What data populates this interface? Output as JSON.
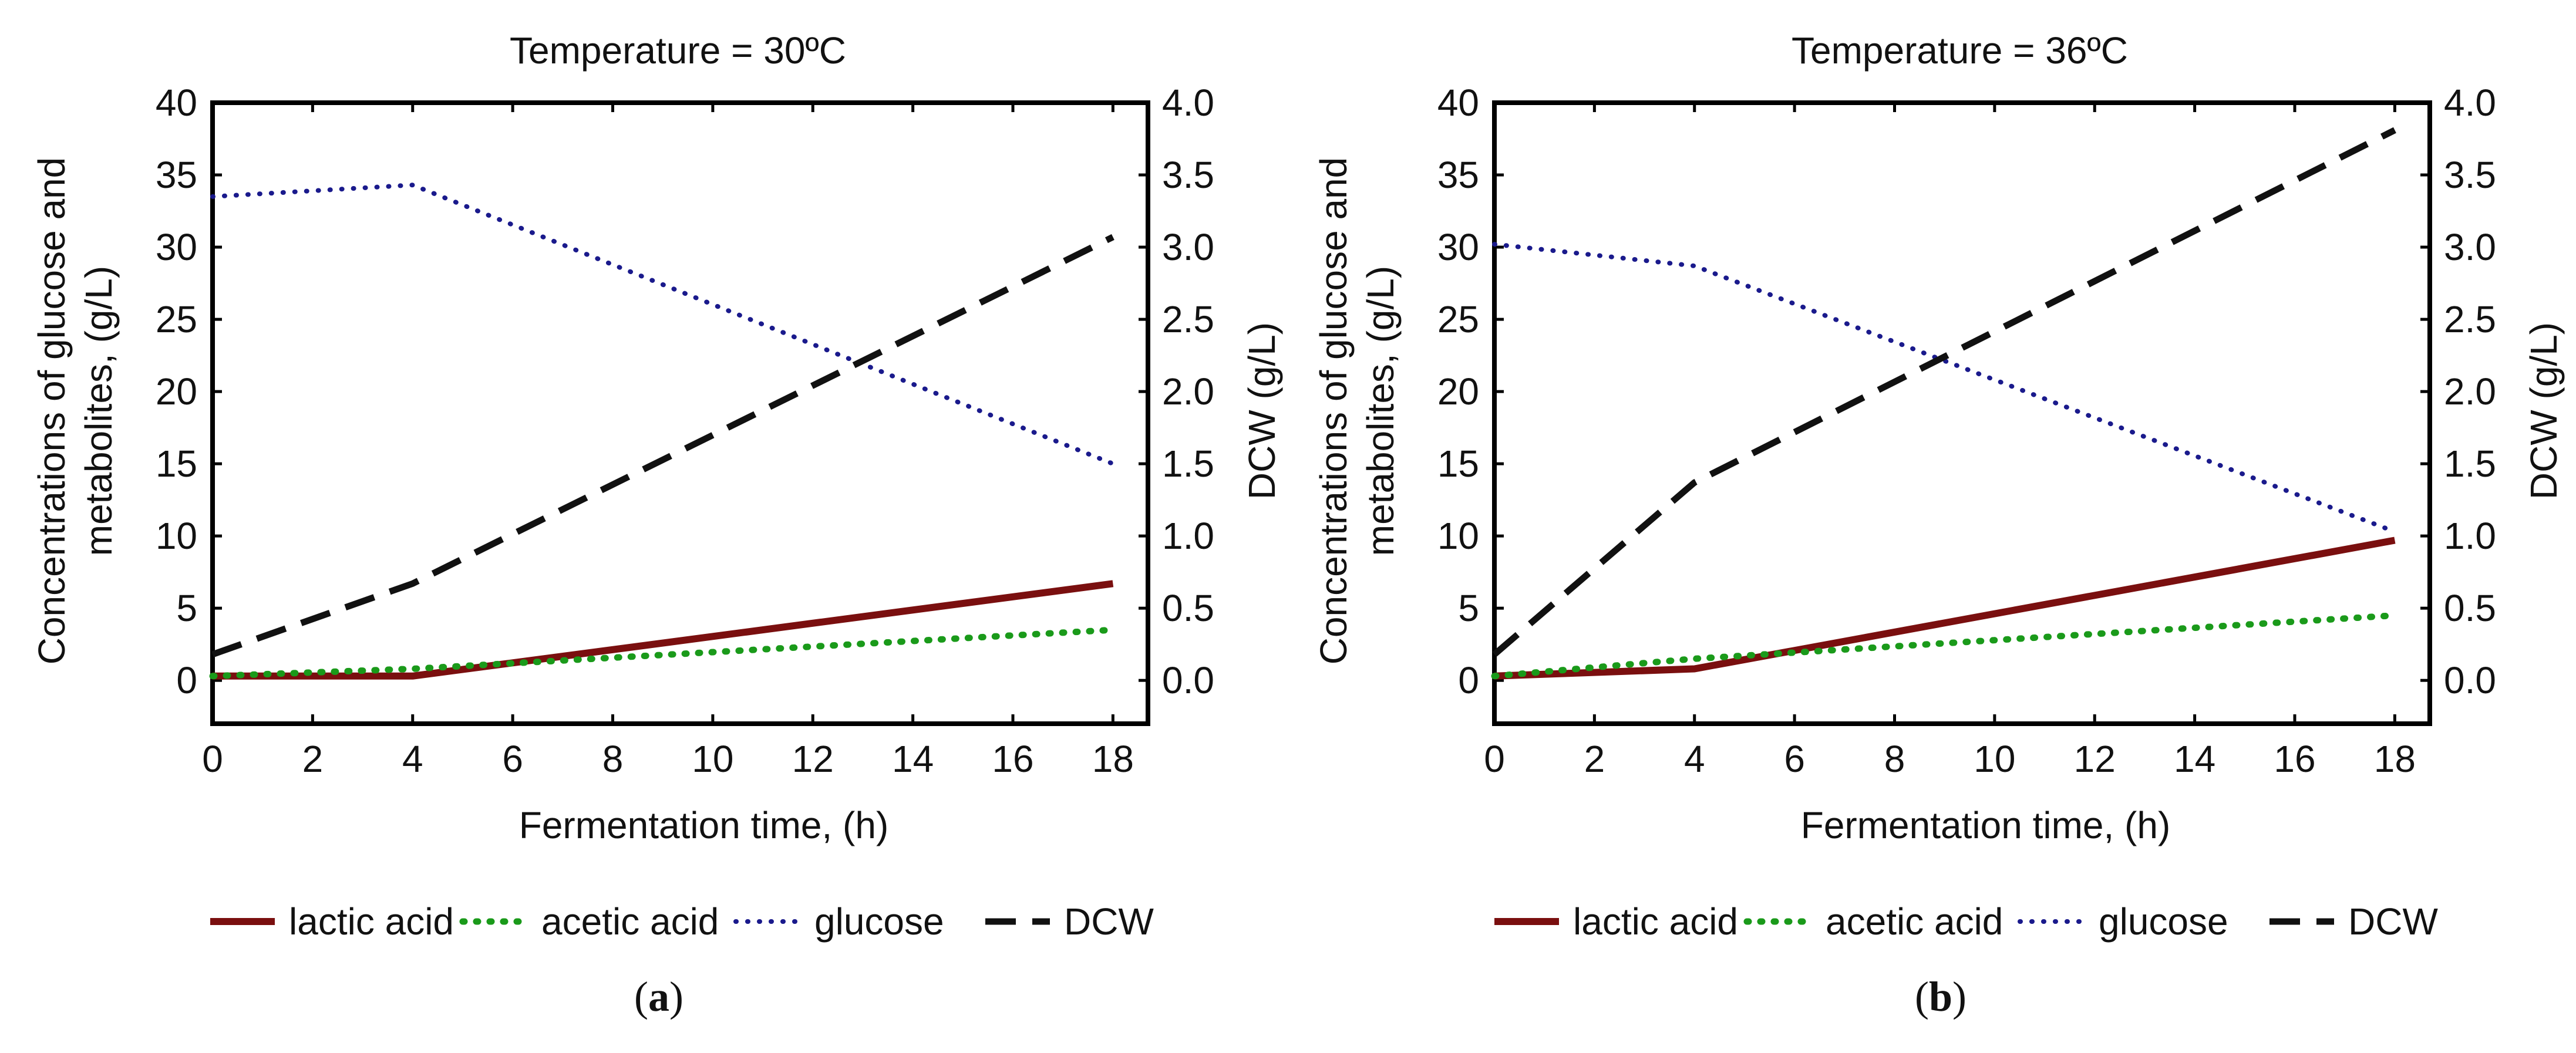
{
  "colors": {
    "lactic_acid": "#7a0f0f",
    "acetic_acid": "#1a9a1a",
    "glucose": "#1a1a8c",
    "dcw": "#111111",
    "axis": "#000000",
    "background": "#ffffff"
  },
  "chart_data": [
    {
      "type": "line",
      "panel_label": "a",
      "title": "Temperature = 30ºC",
      "xlabel": "Fermentation time, (h)",
      "ylabel_left_line1": "Concentrations of glucose and",
      "ylabel_left_line2": "metabolites, (g/L)",
      "ylabel_right": "DCW (g/L)",
      "xlim": [
        0,
        18.7
      ],
      "ylim_left": [
        -3,
        40
      ],
      "ylim_right": [
        -0.3,
        4.0
      ],
      "x_ticks": [
        "0",
        "2",
        "4",
        "6",
        "8",
        "10",
        "12",
        "14",
        "16",
        "18"
      ],
      "y_ticks_left": [
        "0",
        "5",
        "10",
        "15",
        "20",
        "25",
        "30",
        "35",
        "40"
      ],
      "y_ticks_right": [
        "0.0",
        "0.5",
        "1.0",
        "1.5",
        "2.0",
        "2.5",
        "3.0",
        "3.5",
        "4.0"
      ],
      "grid": false,
      "legend_position": "bottom",
      "series": [
        {
          "name": "lactic acid",
          "axis": "left",
          "style": "solid",
          "x": [
            0,
            4,
            18
          ],
          "y": [
            0.3,
            0.3,
            6.7
          ]
        },
        {
          "name": "acetic acid",
          "axis": "left",
          "style": "dotted",
          "x": [
            0,
            4,
            18
          ],
          "y": [
            0.3,
            0.8,
            3.5
          ]
        },
        {
          "name": "glucose",
          "axis": "left",
          "style": "fine-dotted",
          "x": [
            0,
            4,
            18
          ],
          "y": [
            33.5,
            34.3,
            15.0
          ]
        },
        {
          "name": "DCW",
          "axis": "right",
          "style": "dashed",
          "x": [
            0,
            4,
            18
          ],
          "y": [
            0.18,
            0.67,
            3.07
          ]
        }
      ]
    },
    {
      "type": "line",
      "panel_label": "b",
      "title": "Temperature = 36ºC",
      "xlabel": "Fermentation time, (h)",
      "ylabel_left_line1": "Concentrations of glucose and",
      "ylabel_left_line2": "metabolites, (g/L)",
      "ylabel_right": "DCW (g/L)",
      "xlim": [
        0,
        18.7
      ],
      "ylim_left": [
        -3,
        40
      ],
      "ylim_right": [
        -0.3,
        4.0
      ],
      "x_ticks": [
        "0",
        "2",
        "4",
        "6",
        "8",
        "10",
        "12",
        "14",
        "16",
        "18"
      ],
      "y_ticks_left": [
        "0",
        "5",
        "10",
        "15",
        "20",
        "25",
        "30",
        "35",
        "40"
      ],
      "y_ticks_right": [
        "0.0",
        "0.5",
        "1.0",
        "1.5",
        "2.0",
        "2.5",
        "3.0",
        "3.5",
        "4.0"
      ],
      "grid": false,
      "legend_position": "bottom",
      "series": [
        {
          "name": "lactic acid",
          "axis": "left",
          "style": "solid",
          "x": [
            0,
            4,
            18
          ],
          "y": [
            0.3,
            0.8,
            9.7
          ]
        },
        {
          "name": "acetic acid",
          "axis": "left",
          "style": "dotted",
          "x": [
            0,
            4,
            18
          ],
          "y": [
            0.3,
            1.5,
            4.5
          ]
        },
        {
          "name": "glucose",
          "axis": "left",
          "style": "fine-dotted",
          "x": [
            0,
            4,
            18
          ],
          "y": [
            30.2,
            28.7,
            10.3
          ]
        },
        {
          "name": "DCW",
          "axis": "right",
          "style": "dashed",
          "x": [
            0,
            4,
            18
          ],
          "y": [
            0.18,
            1.37,
            3.81
          ]
        }
      ]
    }
  ]
}
